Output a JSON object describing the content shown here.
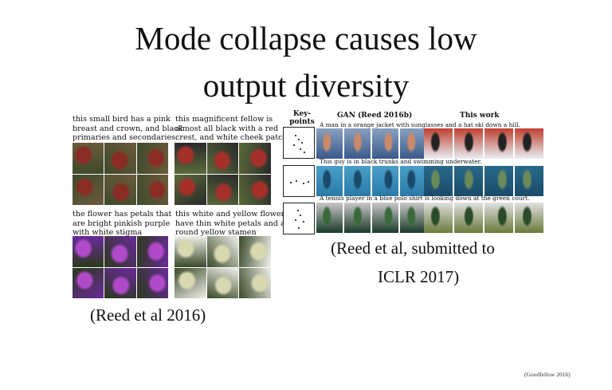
{
  "slide": {
    "title_line1": "Mode collapse causes low",
    "title_line2": "output diversity",
    "left_citation": "(Reed et al 2016)",
    "right_citation_line1": "(Reed et al, submitted to",
    "right_citation_line2": "ICLR 2017)",
    "footer": "(Goodfellow 2016)"
  },
  "left_panel": {
    "captions": [
      [
        "this small bird has a pink",
        "breast and crown, and black",
        "primaries and secondaries."
      ],
      [
        "this magnificent fellow is",
        "almost all black with a red",
        "crest, and white cheek patch."
      ],
      [
        "the flower has petals that",
        "are bright pinkish purple",
        "with white stigma"
      ],
      [
        "this white and yellow flower",
        "have thin white petals and a",
        "round yellow stamen"
      ]
    ]
  },
  "right_panel": {
    "headers": {
      "keypoints_line1": "Key-",
      "keypoints_line2": "points",
      "gan": "GAN (Reed 2016b)",
      "this_work": "This work"
    },
    "row_captions": [
      "A man in a orange jacket with sunglasses and a hat ski down a hill.",
      "This guy is in black trunks and swimming underwater.",
      "A tennis player in a blue polo shirt is looking down at the green court."
    ]
  },
  "image_themes": {
    "bird_pink": [
      "#6b5a3a",
      "#8a2c24",
      "#3e4a2c"
    ],
    "bird_black": [
      "#2a2a2a",
      "#a5302a",
      "#5a6a3a"
    ],
    "flower_purple": [
      "#6a2a9a",
      "#b04ac8",
      "#2a3a1a"
    ],
    "flower_white": [
      "#f0f0e8",
      "#d8d8b0",
      "#3a4a2a"
    ],
    "ski_gan": [
      "#3a5a8a",
      "#c88a6a",
      "#8aa0c0"
    ],
    "ski_work": [
      "#e8eef4",
      "#222",
      "#c04030"
    ],
    "swim_gan": [
      "#2a7aa8",
      "#1a4a6a",
      "#4aa0c8"
    ],
    "swim_work": [
      "#1a4a6a",
      "#6a8a5a",
      "#2a6a8a"
    ],
    "tennis_gan": [
      "#1a3a2a",
      "#3a6a3a",
      "#c8c8c8"
    ],
    "tennis_work": [
      "#6a7a3a",
      "#2a4a2a",
      "#e0e0e0"
    ]
  }
}
